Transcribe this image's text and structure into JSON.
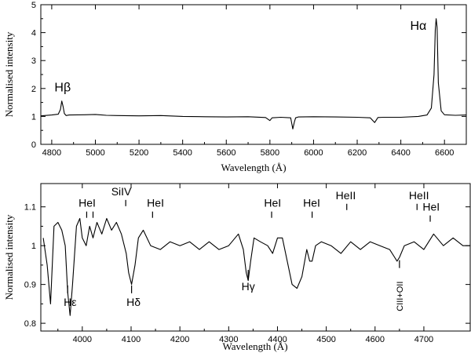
{
  "chart_data": [
    {
      "type": "line",
      "xlabel": "Wavelength (Å)",
      "ylabel": "Normalised intensity",
      "xlim": [
        4750,
        6700
      ],
      "ylim": [
        0,
        5
      ],
      "xticks": [
        4800,
        5000,
        5200,
        5400,
        5600,
        5800,
        6000,
        6200,
        6400,
        6600
      ],
      "yticks": [
        0,
        1,
        2,
        3,
        4,
        5
      ],
      "grid": false,
      "series": [
        {
          "x": [
            4750,
            4800,
            4830,
            4840,
            4846,
            4852,
            4858,
            4866,
            4880,
            4950,
            5000,
            5050,
            5100,
            5200,
            5300,
            5400,
            5500,
            5600,
            5700,
            5780,
            5800,
            5810,
            5850,
            5895,
            5905,
            5912,
            5918,
            5930,
            6000,
            6100,
            6200,
            6260,
            6280,
            6295,
            6320,
            6400,
            6480,
            6520,
            6540,
            6552,
            6558,
            6562,
            6566,
            6572,
            6585,
            6600,
            6650,
            6700
          ],
          "y": [
            1.02,
            1.05,
            1.08,
            1.25,
            1.55,
            1.35,
            1.1,
            1.03,
            1.05,
            1.06,
            1.07,
            1.04,
            1.03,
            1.02,
            1.03,
            1.0,
            0.99,
            0.98,
            0.99,
            0.96,
            0.85,
            0.95,
            0.97,
            0.95,
            0.55,
            0.8,
            0.95,
            0.98,
            0.99,
            0.98,
            0.97,
            0.95,
            0.78,
            0.96,
            0.97,
            0.97,
            1.0,
            1.05,
            1.3,
            2.5,
            4.1,
            4.5,
            4.2,
            2.2,
            1.2,
            1.06,
            1.04,
            1.05
          ]
        }
      ],
      "annotations": [
        {
          "text": "Hβ",
          "x": 4850,
          "y": 1.9
        },
        {
          "text": "Hα",
          "x": 6480,
          "y": 4.1
        }
      ]
    },
    {
      "type": "line",
      "xlabel": "Wavelength (Å)",
      "ylabel": "Normalised intensity",
      "xlim": [
        3915,
        4795
      ],
      "ylim": [
        0.78,
        1.16
      ],
      "xticks": [
        4000,
        4100,
        4200,
        4300,
        4400,
        4500,
        4600,
        4700
      ],
      "yticks": [
        0.8,
        0.9,
        1.0,
        1.1
      ],
      "ytick_labels": [
        "0.8",
        "0.9",
        "1",
        "1.1"
      ],
      "grid": false,
      "series": [
        {
          "x": [
            3920,
            3928,
            3935,
            3942,
            3950,
            3958,
            3965,
            3970,
            3975,
            3980,
            3988,
            3995,
            4000,
            4008,
            4015,
            4022,
            4030,
            4040,
            4050,
            4060,
            4070,
            4080,
            4090,
            4095,
            4101,
            4108,
            4115,
            4125,
            4140,
            4160,
            4180,
            4200,
            4220,
            4240,
            4260,
            4280,
            4300,
            4320,
            4330,
            4336,
            4340,
            4345,
            4352,
            4365,
            4380,
            4390,
            4400,
            4410,
            4420,
            4430,
            4440,
            4450,
            4460,
            4466,
            4471,
            4478,
            4490,
            4510,
            4530,
            4550,
            4570,
            4590,
            4610,
            4630,
            4640,
            4645,
            4650,
            4660,
            4680,
            4700,
            4720,
            4740,
            4760,
            4780,
            4795
          ],
          "y": [
            1.02,
            0.95,
            0.85,
            1.05,
            1.06,
            1.04,
            1.0,
            0.88,
            0.82,
            0.9,
            1.05,
            1.07,
            1.02,
            1.0,
            1.05,
            1.02,
            1.06,
            1.03,
            1.07,
            1.04,
            1.06,
            1.03,
            0.98,
            0.93,
            0.9,
            0.95,
            1.02,
            1.04,
            1.0,
            0.99,
            1.01,
            1.0,
            1.01,
            0.99,
            1.01,
            0.99,
            1.0,
            1.03,
            0.99,
            0.93,
            0.91,
            0.96,
            1.02,
            1.01,
            1.0,
            0.98,
            1.02,
            1.02,
            0.96,
            0.9,
            0.89,
            0.92,
            0.99,
            0.96,
            0.96,
            1.0,
            1.01,
            1.0,
            0.98,
            1.01,
            0.99,
            1.01,
            1.0,
            0.99,
            0.97,
            0.96,
            0.97,
            1.0,
            1.01,
            0.99,
            1.03,
            1.0,
            1.02,
            1.0,
            1.0
          ]
        }
      ],
      "annotations": [
        {
          "text": "HeI",
          "x": 4010,
          "y": 1.1,
          "tick": [
            4009,
            4022
          ]
        },
        {
          "text": "SiIV",
          "x": 4080,
          "y": 1.13,
          "tick": [
            4089
          ]
        },
        {
          "text": "HeI",
          "x": 4150,
          "y": 1.1,
          "tick": [
            4144
          ]
        },
        {
          "text": "HeI",
          "x": 4390,
          "y": 1.1,
          "tick": [
            4388
          ]
        },
        {
          "text": "HeI",
          "x": 4470,
          "y": 1.1,
          "tick": [
            4471
          ]
        },
        {
          "text": "HeII",
          "x": 4540,
          "y": 1.12,
          "tick": [
            4542
          ]
        },
        {
          "text": "HeII",
          "x": 4690,
          "y": 1.12,
          "tick": [
            4686
          ]
        },
        {
          "text": "HeI",
          "x": 4715,
          "y": 1.09,
          "tick": [
            4713
          ]
        },
        {
          "text": "Hε",
          "x": 3975,
          "y": 0.845,
          "tick": [
            3970
          ]
        },
        {
          "text": "Hδ",
          "x": 4105,
          "y": 0.845,
          "tick": [
            4101
          ]
        },
        {
          "text": "Hγ",
          "x": 4340,
          "y": 0.885,
          "tick": [
            4340
          ]
        },
        {
          "text": "CIII+OII",
          "x": 4650,
          "y": 0.91,
          "tick": [
            4650
          ],
          "vertical": true
        }
      ]
    }
  ]
}
